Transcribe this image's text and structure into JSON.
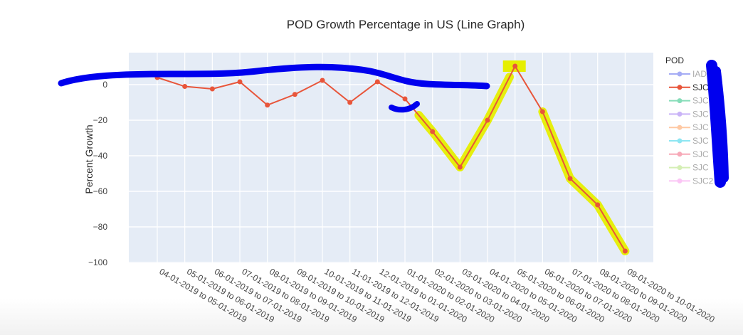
{
  "chart_data": {
    "type": "line",
    "title": "POD Growth Percentage in US (Line Graph)",
    "xlabel": "",
    "ylabel": "Percent Growth",
    "ylim": [
      -100,
      18
    ],
    "yticks": [
      0,
      -20,
      -40,
      -60,
      -80,
      -100
    ],
    "ytick_labels": [
      "0",
      "−20",
      "−40",
      "−60",
      "−80",
      "−100"
    ],
    "grid": true,
    "categories": [
      "04-01-2019 to 05-01-2019",
      "05-01-2019 to 06-01-2019",
      "06-01-2019 to 07-01-2019",
      "07-01-2019 to 08-01-2019",
      "08-01-2019 to 09-01-2019",
      "09-01-2019 to 10-01-2019",
      "10-01-2019 to 11-01-2019",
      "11-01-2019 to 12-01-2019",
      "12-01-2019 to 01-01-2020",
      "01-01-2020 to 02-01-2020",
      "02-01-2020 to 03-01-2020",
      "03-01-2020 to 04-01-2020",
      "04-01-2020 to 05-01-2020",
      "05-01-2020 to 06-01-2020",
      "06-01-2020 to 07-01-2020",
      "07-01-2020 to 08-01-2020",
      "08-01-2020 to 09-01-2020",
      "09-01-2020 to 10-01-2020"
    ],
    "series": [
      {
        "name": "SJC (visible)",
        "color": "#e8553a",
        "visible": true,
        "values": [
          4,
          -1,
          -2.4,
          1.6,
          -11.5,
          -5.5,
          2.4,
          -10,
          1.6,
          -8,
          -26.4,
          -46.4,
          -20,
          10.4,
          -15.2,
          -52.8,
          -67.6,
          -93.6
        ]
      }
    ],
    "legend": {
      "title": "POD",
      "placement": "right",
      "items": [
        {
          "label": "IAD",
          "color": "#a5acf5",
          "active": false
        },
        {
          "label": "SJC",
          "color": "#e8553a",
          "active": true
        },
        {
          "label": "SJC",
          "color": "#86ddb9",
          "active": false
        },
        {
          "label": "SJC",
          "color": "#c9b3f7",
          "active": false
        },
        {
          "label": "SJC",
          "color": "#ffc9a4",
          "active": false
        },
        {
          "label": "SJC",
          "color": "#8ee6f2",
          "active": false
        },
        {
          "label": "SJC",
          "color": "#f7a9b8",
          "active": false
        },
        {
          "label": "SJC",
          "color": "#d5efb5",
          "active": false
        },
        {
          "label": "SJC2",
          "color": "#fbc5f5",
          "active": false
        }
      ]
    },
    "annotations": [
      {
        "type": "freehand-strokes",
        "color": "#0000ee",
        "description": "blue marker strokes redacting legend labels and drawn across top of chart"
      },
      {
        "type": "highlighter",
        "color": "#e6ef00",
        "description": "yellow highlight over 2020 decline segments and peak"
      }
    ]
  },
  "colors": {
    "plot_bg": "#e5ecf6",
    "grid": "#ffffff",
    "inactive_legend_text": "#aaaaaa"
  }
}
